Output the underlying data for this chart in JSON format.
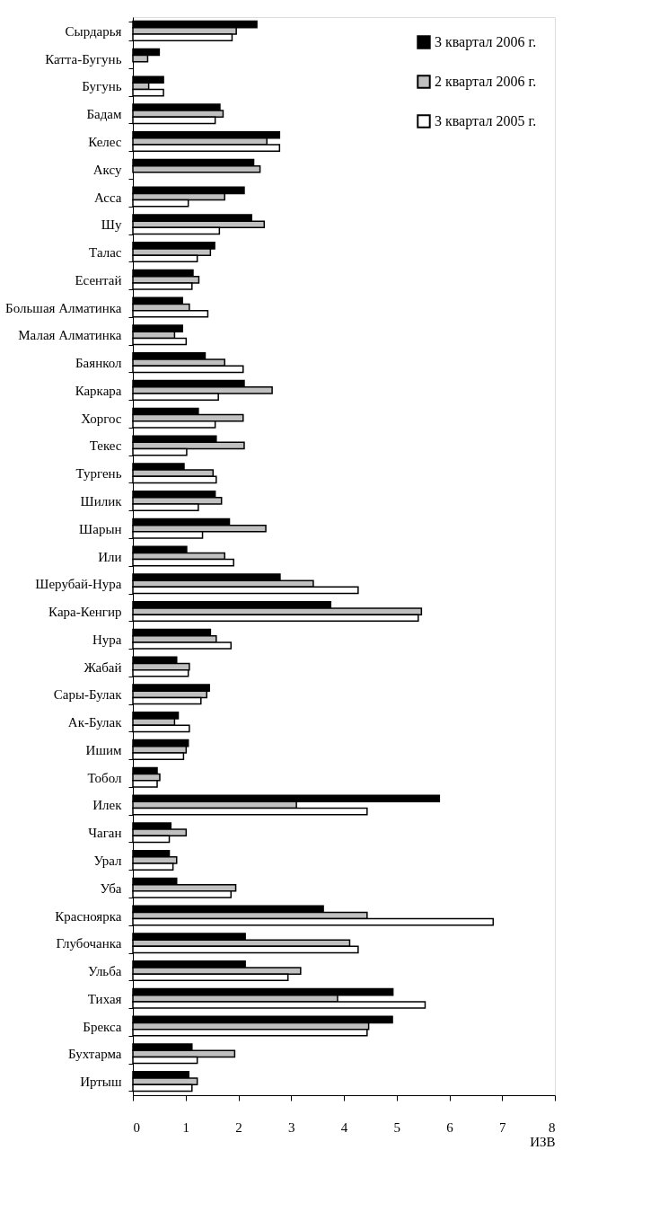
{
  "chart_data": {
    "type": "bar",
    "orientation": "horizontal",
    "xlabel": "ИЗВ",
    "categories": [
      "Сырдарья",
      "Катта-Бугунь",
      "Бугунь",
      "Бадам",
      "Келес",
      "Аксу",
      "Асса",
      "Шу",
      "Талас",
      "Есентай",
      "Большая Алматинка",
      "Малая Алматинка",
      "Баянкол",
      "Каркара",
      "Хоргос",
      "Текес",
      "Тургень",
      "Шилик",
      "Шарын",
      "Или",
      "Шерубай-Нура",
      "Кара-Кенгир",
      "Нура",
      "Жабай",
      "Сары-Булак",
      "Ак-Булак",
      "Ишим",
      "Тобол",
      "Илек",
      "Чаган",
      "Урал",
      "Уба",
      "Красноярка",
      "Глубочанка",
      "Ульба",
      "Тихая",
      "Брекса",
      "Бухтарма",
      "Иртыш"
    ],
    "series": [
      {
        "name": "3 квартал 2006 г.",
        "color": "#000000",
        "values": [
          2.35,
          0.5,
          0.58,
          1.65,
          2.78,
          2.29,
          2.11,
          2.25,
          1.55,
          1.14,
          0.94,
          0.94,
          1.37,
          2.11,
          1.24,
          1.58,
          0.97,
          1.56,
          1.83,
          1.02,
          2.79,
          3.75,
          1.47,
          0.83,
          1.45,
          0.86,
          1.05,
          0.46,
          5.81,
          0.72,
          0.69,
          0.83,
          3.61,
          2.13,
          2.13,
          4.93,
          4.92,
          1.12,
          1.06
        ]
      },
      {
        "name": "2 квартал 2006 г.",
        "color": "#c0c0c0",
        "values": [
          1.96,
          0.28,
          0.3,
          1.71,
          2.54,
          2.41,
          1.74,
          2.49,
          1.47,
          1.25,
          1.07,
          0.79,
          1.74,
          2.64,
          2.09,
          2.11,
          1.52,
          1.68,
          2.52,
          1.74,
          3.42,
          5.47,
          1.58,
          1.07,
          1.4,
          0.79,
          1.01,
          0.51,
          3.1,
          1.01,
          0.83,
          1.95,
          4.44,
          4.11,
          3.18,
          3.88,
          4.47,
          1.93,
          1.22
        ]
      },
      {
        "name": "3 квартал 2005 г.",
        "color": "#ffffff",
        "values": [
          1.88,
          null,
          0.58,
          1.56,
          2.78,
          null,
          1.05,
          1.64,
          1.22,
          1.12,
          1.42,
          1.01,
          2.09,
          1.62,
          1.56,
          1.02,
          1.58,
          1.24,
          1.32,
          1.91,
          4.27,
          5.41,
          1.86,
          1.05,
          1.29,
          1.07,
          0.96,
          0.46,
          4.44,
          0.69,
          0.76,
          1.86,
          6.83,
          4.27,
          2.94,
          5.54,
          4.44,
          1.22,
          1.12
        ]
      }
    ],
    "xlim": [
      0,
      8
    ],
    "xticks": [
      0,
      1,
      2,
      3,
      4,
      5,
      6,
      7,
      8
    ],
    "grid": false,
    "legend": "top right"
  }
}
